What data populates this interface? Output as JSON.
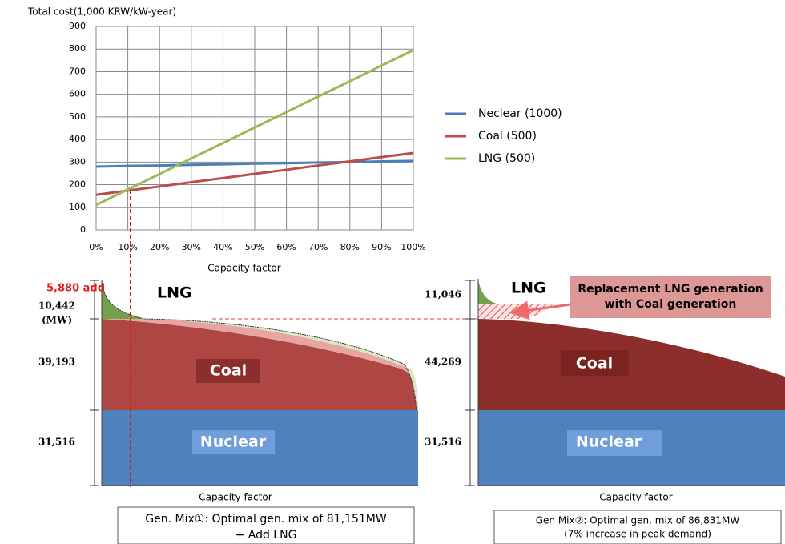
{
  "chart_data": {
    "type": "line",
    "y_label": "Total cost(1,000 KRW/kW-year)",
    "x_label": "Capacity factor",
    "x": [
      0,
      10,
      20,
      30,
      40,
      50,
      60,
      70,
      80,
      90,
      100
    ],
    "xlim": [
      0,
      100
    ],
    "xticks": [
      {
        "value": 0,
        "label": "0%"
      },
      {
        "value": 10,
        "label": "10%"
      },
      {
        "value": 20,
        "label": "20%"
      },
      {
        "value": 30,
        "label": "30%"
      },
      {
        "value": 40,
        "label": "40%"
      },
      {
        "value": 50,
        "label": "50%"
      },
      {
        "value": 60,
        "label": "60%"
      },
      {
        "value": 70,
        "label": "70%"
      },
      {
        "value": 80,
        "label": "80%"
      },
      {
        "value": 90,
        "label": "90%"
      },
      {
        "value": 100,
        "label": "100%"
      }
    ],
    "ylim": [
      0,
      900
    ],
    "yticks": [
      0,
      100,
      200,
      300,
      400,
      500,
      600,
      700,
      800,
      900
    ],
    "grid": true,
    "legend": "right",
    "series": [
      {
        "name": "Neclear (1000)",
        "color": "#4a7ebb",
        "values": [
          280,
          283,
          285,
          288,
          290,
          293,
          295,
          298,
          300,
          303,
          305
        ]
      },
      {
        "name": "Coal (500)",
        "color": "#be4b48",
        "values": [
          155,
          174,
          192,
          211,
          229,
          248,
          266,
          285,
          303,
          322,
          340
        ]
      },
      {
        "name": "LNG (500)",
        "color": "#98b954",
        "values": [
          110,
          179,
          247,
          316,
          384,
          453,
          521,
          590,
          658,
          727,
          795
        ]
      }
    ]
  },
  "left": {
    "add": "5,880 add",
    "lng_mw": "10,442",
    "unit": "(MW)",
    "coal_mw": "39,193",
    "nuclear_mw": "31,516",
    "lng": "LNG",
    "coal": "Coal",
    "nuclear": "Nuclear",
    "x_label": "Capacity factor",
    "caption": [
      "Gen. Mix①: Optimal gen. mix of 81,151MW",
      "+ Add LNG"
    ]
  },
  "right": {
    "lng_mw": "11,046",
    "coal_mw": "44,269",
    "nuclear_mw": "31,516",
    "lng": "LNG",
    "coal": "Coal",
    "nuclear": "Nuclear",
    "x_label": "Capacity factor",
    "callout": [
      "Replacement LNG generation",
      "with Coal generation"
    ],
    "caption": [
      "Gen Mix②: Optimal gen. mix of 86,831MW",
      "(7% increase in peak demand)"
    ]
  }
}
